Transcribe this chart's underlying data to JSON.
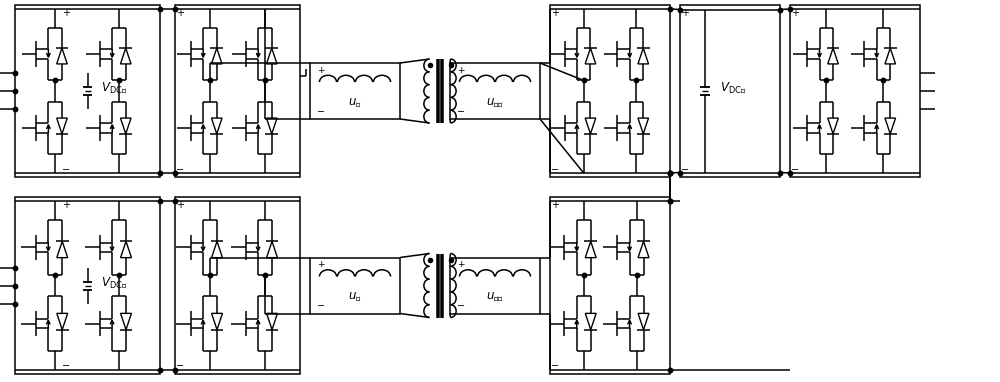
{
  "fig_w": 10.0,
  "fig_h": 3.82,
  "dpi": 100,
  "lw": 1.1,
  "labels": {
    "VDC_jia": "V_\\mathrm{DC甲}",
    "VDC_yi": "V_\\mathrm{DC乙}",
    "VDC_bing": "V_\\mathrm{DC丙}",
    "u_jia": "u_\\mathrm{甲}",
    "u_yi": "u_\\mathrm{乙}",
    "u_bingjia": "u_\\mathrm{丙甲}",
    "u_bingyi": "u_\\mathrm{丙乙}"
  }
}
